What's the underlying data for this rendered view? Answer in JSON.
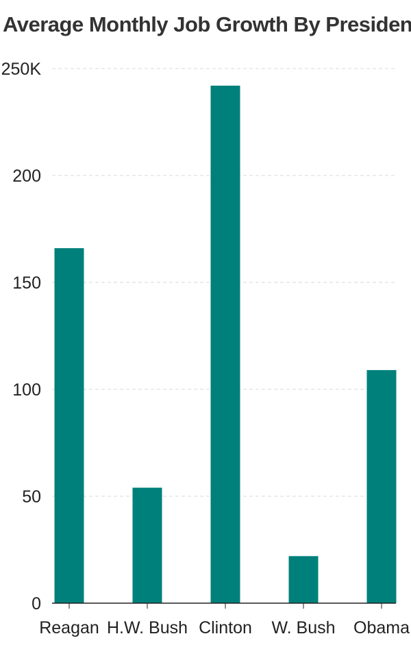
{
  "chart_data": {
    "type": "bar",
    "title": "Average Monthly Job Growth By President",
    "categories": [
      "Reagan",
      "H.W. Bush",
      "Clinton",
      "W. Bush",
      "Obama"
    ],
    "values": [
      166,
      54,
      242,
      22,
      109
    ],
    "ylim": [
      0,
      250
    ],
    "yticks": [
      0,
      50,
      100,
      150,
      200,
      250
    ],
    "ytick_labels": [
      "0",
      "50",
      "100",
      "150",
      "200",
      "250K"
    ],
    "xlabel": "",
    "ylabel": "",
    "grid": true,
    "legend": "none",
    "bar_color": "#00807a"
  }
}
